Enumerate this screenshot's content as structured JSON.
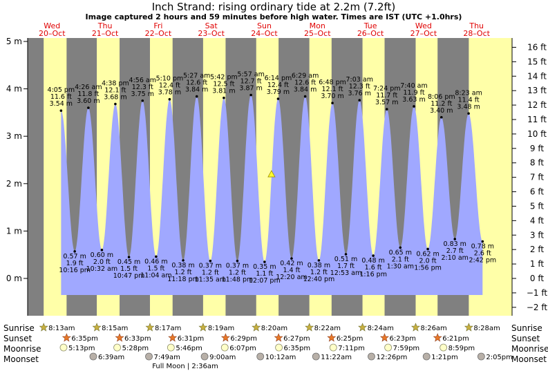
{
  "header": {
    "title": "Inch Strand: rising  ordinary tide at 2.2m (7.2ft)",
    "subtitle": "Image captured 2 hours and 59 minutes before high water. Times are IST (UTC +1.0hrs)"
  },
  "colors": {
    "night": "#808080",
    "day": "#ffffa8",
    "water": "#a0a8ff",
    "day_label": "#e00000"
  },
  "days": [
    {
      "name": "Wed",
      "date": "20–Oct"
    },
    {
      "name": "Thu",
      "date": "21–Oct"
    },
    {
      "name": "Fri",
      "date": "22–Oct"
    },
    {
      "name": "Sat",
      "date": "23–Oct"
    },
    {
      "name": "Sun",
      "date": "24–Oct"
    },
    {
      "name": "Mon",
      "date": "25–Oct"
    },
    {
      "name": "Tue",
      "date": "26–Oct"
    },
    {
      "name": "Wed",
      "date": "27–Oct"
    },
    {
      "name": "Thu",
      "date": "28–Oct"
    }
  ],
  "chart_data": {
    "type": "area",
    "title": "Inch Strand: rising  ordinary tide at 2.2m (7.2ft)",
    "x_start": "2021-10-20 00:00",
    "y_axis_left": {
      "unit": "m",
      "ticks": [
        0,
        1,
        2,
        3,
        4,
        5
      ],
      "tick_labels": [
        "0 m",
        "1 m",
        "2 m",
        "3 m",
        "4 m",
        "5 m"
      ],
      "range": [
        -0.7,
        5.2
      ]
    },
    "y_axis_right": {
      "unit": "ft",
      "ticks": [
        -2,
        -1,
        0,
        1,
        2,
        3,
        4,
        5,
        6,
        7,
        8,
        9,
        10,
        11,
        12,
        13,
        14,
        15,
        16
      ],
      "tick_labels": [
        "−2 ft",
        "−1 ft",
        "0 ft",
        "1 ft",
        "2 ft",
        "3 ft",
        "4 ft",
        "5 ft",
        "6 ft",
        "7 ft",
        "8 ft",
        "9 ft",
        "10 ft",
        "11 ft",
        "12 ft",
        "13 ft",
        "14 ft",
        "15 ft",
        "16 ft"
      ]
    },
    "daylight": [
      [
        "20-Oct 08:13",
        "20-Oct 18:35"
      ],
      [
        "21-Oct 08:15",
        "21-Oct 18:33"
      ],
      [
        "22-Oct 08:17",
        "22-Oct 18:31"
      ],
      [
        "23-Oct 08:19",
        "23-Oct 18:29"
      ],
      [
        "24-Oct 08:20",
        "24-Oct 18:27"
      ],
      [
        "25-Oct 08:22",
        "25-Oct 18:25"
      ],
      [
        "26-Oct 08:24",
        "26-Oct 18:23"
      ],
      [
        "27-Oct 08:26",
        "27-Oct 18:21"
      ]
    ],
    "tides": [
      {
        "type": "high",
        "day": "20-Oct",
        "time": "4:05 pm",
        "ft": "11.6 ft",
        "m": 3.54
      },
      {
        "type": "low",
        "day": "20-Oct",
        "time": "10:16 pm",
        "ft": "1.9 ft",
        "m": 0.57
      },
      {
        "type": "high",
        "day": "21-Oct",
        "time": "4:26 am",
        "ft": "11.8 ft",
        "m": 3.6
      },
      {
        "type": "low",
        "day": "21-Oct",
        "time": "10:32 am",
        "ft": "2.0 ft",
        "m": 0.6
      },
      {
        "type": "high",
        "day": "21-Oct",
        "time": "4:38 pm",
        "ft": "12.1 ft",
        "m": 3.68
      },
      {
        "type": "low",
        "day": "21-Oct",
        "time": "10:47 pm",
        "ft": "1.5 ft",
        "m": 0.45
      },
      {
        "type": "high",
        "day": "22-Oct",
        "time": "4:56 am",
        "ft": "12.3 ft",
        "m": 3.75
      },
      {
        "type": "low",
        "day": "22-Oct",
        "time": "11:04 am",
        "ft": "1.5 ft",
        "m": 0.46
      },
      {
        "type": "high",
        "day": "22-Oct",
        "time": "5:10 pm",
        "ft": "12.4 ft",
        "m": 3.78
      },
      {
        "type": "low",
        "day": "22-Oct",
        "time": "11:18 pm",
        "ft": "1.2 ft",
        "m": 0.38
      },
      {
        "type": "high",
        "day": "23-Oct",
        "time": "5:27 am",
        "ft": "12.6 ft",
        "m": 3.84
      },
      {
        "type": "low",
        "day": "23-Oct",
        "time": "11:35 am",
        "ft": "1.2 ft",
        "m": 0.37
      },
      {
        "type": "high",
        "day": "23-Oct",
        "time": "5:42 pm",
        "ft": "12.5 ft",
        "m": 3.81
      },
      {
        "type": "low",
        "day": "23-Oct",
        "time": "11:48 pm",
        "ft": "1.2 ft",
        "m": 0.37
      },
      {
        "type": "high",
        "day": "24-Oct",
        "time": "5:57 am",
        "ft": "12.7 ft",
        "m": 3.87
      },
      {
        "type": "low",
        "day": "24-Oct",
        "time": "12:07 pm",
        "ft": "1.1 ft",
        "m": 0.35
      },
      {
        "type": "high",
        "day": "24-Oct",
        "time": "6:14 pm",
        "ft": "12.4 ft",
        "m": 3.79
      },
      {
        "type": "low",
        "day": "25-Oct",
        "time": "12:20 am",
        "ft": "1.4 ft",
        "m": 0.42
      },
      {
        "type": "high",
        "day": "25-Oct",
        "time": "6:29 am",
        "ft": "12.6 ft",
        "m": 3.84
      },
      {
        "type": "low",
        "day": "25-Oct",
        "time": "12:40 pm",
        "ft": "1.2 ft",
        "m": 0.38
      },
      {
        "type": "high",
        "day": "25-Oct",
        "time": "6:48 pm",
        "ft": "12.1 ft",
        "m": 3.7
      },
      {
        "type": "low",
        "day": "26-Oct",
        "time": "12:53 am",
        "ft": "1.7 ft",
        "m": 0.51
      },
      {
        "type": "high",
        "day": "26-Oct",
        "time": "7:03 am",
        "ft": "12.3 ft",
        "m": 3.76
      },
      {
        "type": "low",
        "day": "26-Oct",
        "time": "1:16 pm",
        "ft": "1.6 ft",
        "m": 0.48
      },
      {
        "type": "high",
        "day": "26-Oct",
        "time": "7:24 pm",
        "ft": "11.7 ft",
        "m": 3.57
      },
      {
        "type": "low",
        "day": "27-Oct",
        "time": "1:30 am",
        "ft": "2.1 ft",
        "m": 0.65
      },
      {
        "type": "high",
        "day": "27-Oct",
        "time": "7:40 am",
        "ft": "11.9 ft",
        "m": 3.63
      },
      {
        "type": "low",
        "day": "27-Oct",
        "time": "1:56 pm",
        "ft": "2.0 ft",
        "m": 0.62
      },
      {
        "type": "high",
        "day": "27-Oct",
        "time": "8:06 pm",
        "ft": "11.2 ft",
        "m": 3.4
      },
      {
        "type": "low",
        "day": "28-Oct",
        "time": "2:10 am",
        "ft": "2.7 ft",
        "m": 0.83
      },
      {
        "type": "high",
        "day": "28-Oct",
        "time": "8:23 am",
        "ft": "11.4 ft",
        "m": 3.48
      },
      {
        "type": "low",
        "day": "28-Oct",
        "time": "2:42 pm",
        "ft": "2.6 ft",
        "m": 0.78
      }
    ],
    "current": {
      "time": "24-Oct 3:15 pm",
      "m": 2.2,
      "marker": "yellow-triangle"
    },
    "sunrise": [
      {
        "day": "20-Oct",
        "time": "8:13am"
      },
      {
        "day": "21-Oct",
        "time": "8:15am"
      },
      {
        "day": "22-Oct",
        "time": "8:17am"
      },
      {
        "day": "23-Oct",
        "time": "8:19am"
      },
      {
        "day": "24-Oct",
        "time": "8:20am"
      },
      {
        "day": "25-Oct",
        "time": "8:22am"
      },
      {
        "day": "26-Oct",
        "time": "8:24am"
      },
      {
        "day": "27-Oct",
        "time": "8:26am"
      },
      {
        "day": "28-Oct",
        "time": "8:28am"
      }
    ],
    "sunset": [
      {
        "day": "20-Oct",
        "time": "6:35pm"
      },
      {
        "day": "21-Oct",
        "time": "6:33pm"
      },
      {
        "day": "22-Oct",
        "time": "6:31pm"
      },
      {
        "day": "23-Oct",
        "time": "6:29pm"
      },
      {
        "day": "24-Oct",
        "time": "6:27pm"
      },
      {
        "day": "25-Oct",
        "time": "6:25pm"
      },
      {
        "day": "26-Oct",
        "time": "6:23pm"
      },
      {
        "day": "27-Oct",
        "time": "6:21pm"
      }
    ],
    "moonrise": [
      {
        "day": "20-Oct",
        "time": "5:13pm"
      },
      {
        "day": "21-Oct",
        "time": "5:28pm"
      },
      {
        "day": "22-Oct",
        "time": "5:46pm"
      },
      {
        "day": "23-Oct",
        "time": "6:07pm"
      },
      {
        "day": "24-Oct",
        "time": "6:35pm"
      },
      {
        "day": "25-Oct",
        "time": "7:11pm"
      },
      {
        "day": "26-Oct",
        "time": "7:59pm"
      },
      {
        "day": "27-Oct",
        "time": "8:59pm"
      }
    ],
    "moonset": [
      {
        "day": "21-Oct",
        "time": "6:39am"
      },
      {
        "day": "22-Oct",
        "time": "7:49am"
      },
      {
        "day": "23-Oct",
        "time": "9:00am"
      },
      {
        "day": "24-Oct",
        "time": "10:12am"
      },
      {
        "day": "25-Oct",
        "time": "11:22am"
      },
      {
        "day": "26-Oct",
        "time": "12:26pm"
      },
      {
        "day": "27-Oct",
        "time": "1:21pm"
      },
      {
        "day": "28-Oct",
        "time": "2:05pm"
      }
    ],
    "full_moon": {
      "day": "22-Oct",
      "label": "Full Moon | 2:36am"
    }
  },
  "row_labels": {
    "sunrise": "Sunrise",
    "sunset": "Sunset",
    "moonrise": "Moonrise",
    "moonset": "Moonset"
  }
}
